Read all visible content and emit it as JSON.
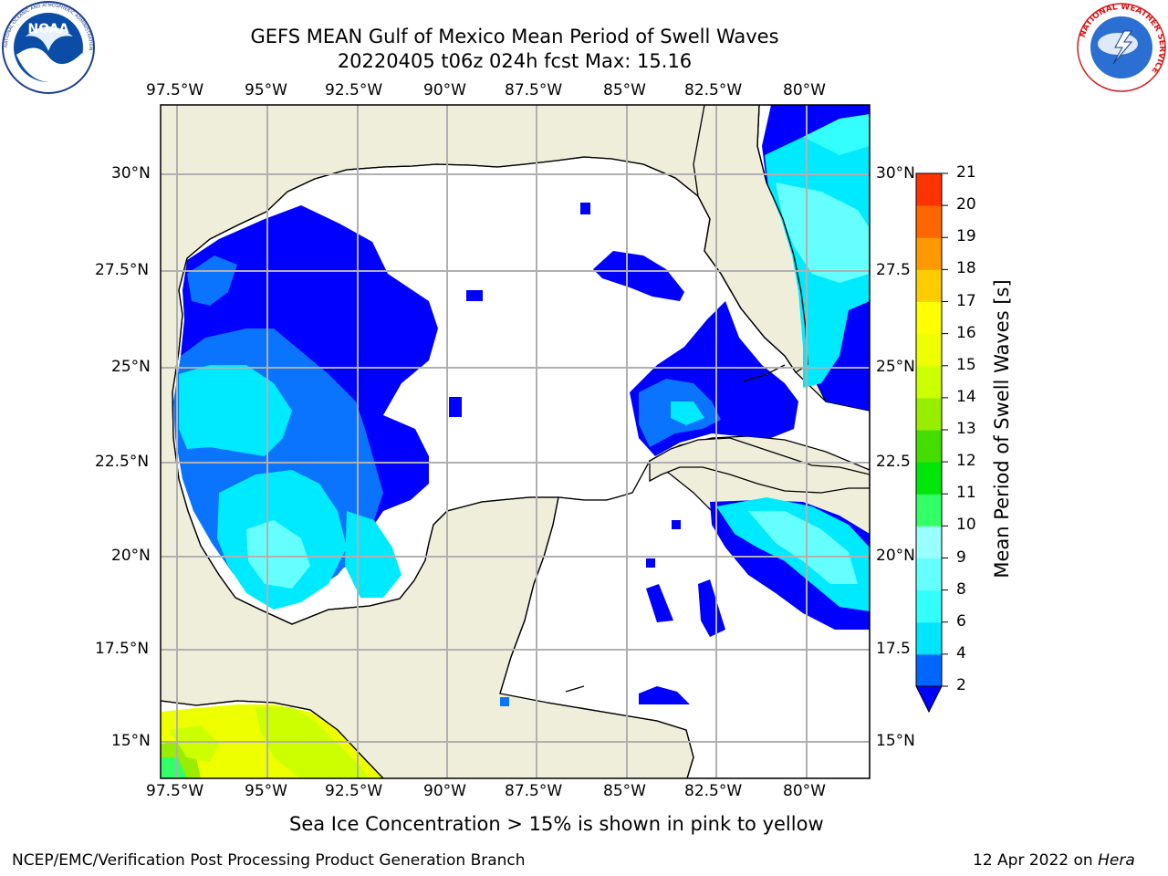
{
  "header": {
    "title_line1": "GEFS MEAN Gulf of Mexico Mean Period of Swell Waves",
    "title_line2": "20220405 t06z 024h fcst   Max: 15.16"
  },
  "map": {
    "lon_labels": [
      "97.5°W",
      "95°W",
      "92.5°W",
      "90°W",
      "87.5°W",
      "85°W",
      "82.5°W",
      "80°W"
    ],
    "lat_labels_left": [
      "30°N",
      "27.5°N",
      "25°N",
      "22.5°N",
      "20°N",
      "17.5°N",
      "15°N"
    ],
    "lat_labels_right": [
      "30°N",
      "27.5",
      "25°N",
      "22.5",
      "20°N",
      "17.5",
      "15°N"
    ],
    "land_color": "#efeedb",
    "water_color": "#ffffff",
    "grid_color": "#b0b0b0"
  },
  "colorbar": {
    "label": "Mean Period of Swell Waves [s]",
    "ticks": [
      "2",
      "4",
      "6",
      "8",
      "9",
      "10",
      "11",
      "12",
      "13",
      "14",
      "15",
      "16",
      "17",
      "18",
      "19",
      "20",
      "21"
    ],
    "colors": [
      "#0066ff",
      "#00e5ff",
      "#33ffff",
      "#66ffff",
      "#99ffff",
      "#33ff66",
      "#00e60a",
      "#44dd00",
      "#99ee00",
      "#ccff00",
      "#eeff00",
      "#ffff00",
      "#ffcc00",
      "#ff9900",
      "#ff6600",
      "#ff3300",
      "#ff0000"
    ],
    "under_color": "#0000ff"
  },
  "footer": {
    "note": "Sea Ice Concentration > 15% is shown in pink to yellow",
    "credit": "NCEP/EMC/Verification Post Processing Product Generation Branch",
    "date_prefix": "12 Apr 2022 on ",
    "date_host": "Hera"
  },
  "logos": {
    "noaa": "NOAA",
    "nws_text": "NATIONAL WEATHER SERVICE",
    "noaa_ring_text": "NATIONAL OCEANIC AND ATMOSPHERIC ADMINISTRATION"
  }
}
